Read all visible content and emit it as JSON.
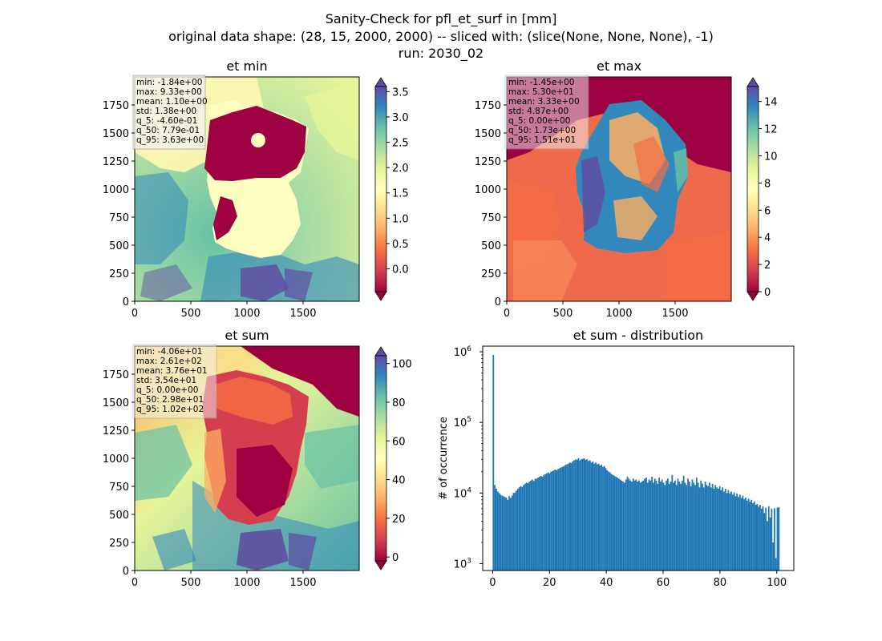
{
  "figure": {
    "title_lines": [
      "Sanity-Check for pfl_et_surf in [mm]",
      "original data shape: (28, 15, 2000, 2000) -- sliced with: (slice(None, None, None), -1)",
      "run: 2030_02"
    ]
  },
  "chart_data": [
    {
      "type": "heatmap",
      "title": "et min",
      "xlim": [
        0,
        2000
      ],
      "ylim": [
        0,
        2000
      ],
      "x_ticks": [
        "0",
        "500",
        "1000",
        "1500"
      ],
      "y_ticks": [
        "0",
        "250",
        "500",
        "750",
        "1000",
        "1250",
        "1500",
        "1750"
      ],
      "colormap": "Spectral",
      "colorbar": {
        "range": [
          -0.45,
          3.6
        ],
        "extend": "both",
        "ticks": [
          "0.0",
          "0.5",
          "1.0",
          "1.5",
          "2.0",
          "2.5",
          "3.0",
          "3.5"
        ],
        "tick_values": [
          0,
          0.5,
          1,
          1.5,
          2,
          2.5,
          3,
          3.5
        ]
      },
      "stats": [
        "min: -1.84e+00",
        "max: 9.33e+00",
        "mean: 1.10e+00",
        "std: 1.38e+00",
        "q_5: -4.60e-01",
        "q_50: 7.79e-01",
        "q_95: 3.63e+00"
      ]
    },
    {
      "type": "heatmap",
      "title": "et max",
      "xlim": [
        0,
        2000
      ],
      "ylim": [
        0,
        2000
      ],
      "x_ticks": [
        "0",
        "500",
        "1000",
        "1500"
      ],
      "y_ticks": [
        "0",
        "250",
        "500",
        "750",
        "1000",
        "1250",
        "1500",
        "1750"
      ],
      "colormap": "Spectral",
      "colorbar": {
        "range": [
          0,
          15.1
        ],
        "extend": "both",
        "ticks": [
          "0",
          "2",
          "4",
          "6",
          "8",
          "10",
          "12",
          "14"
        ],
        "tick_values": [
          0,
          2,
          4,
          6,
          8,
          10,
          12,
          14
        ]
      },
      "stats": [
        "min: -1.45e+00",
        "max: 5.30e+01",
        "mean: 3.33e+00",
        "std: 4.87e+00",
        "q_5: 0.00e+00",
        "q_50: 1.73e+00",
        "q_95: 1.51e+01"
      ]
    },
    {
      "type": "heatmap",
      "title": "et sum",
      "xlim": [
        0,
        2000
      ],
      "ylim": [
        0,
        2000
      ],
      "x_ticks": [
        "0",
        "500",
        "1000",
        "1500"
      ],
      "y_ticks": [
        "0",
        "250",
        "500",
        "750",
        "1000",
        "1250",
        "1500",
        "1750"
      ],
      "colormap": "Spectral",
      "colorbar": {
        "range": [
          -2,
          104
        ],
        "extend": "both",
        "ticks": [
          "0",
          "20",
          "40",
          "60",
          "80",
          "100"
        ],
        "tick_values": [
          0,
          20,
          40,
          60,
          80,
          100
        ]
      },
      "stats": [
        "min: -4.06e+01",
        "max: 2.61e+02",
        "mean: 3.76e+01",
        "std: 3.54e+01",
        "q_5: 0.00e+00",
        "q_50: 2.98e+01",
        "q_95: 1.02e+02"
      ]
    },
    {
      "type": "bar",
      "title": "et sum - distribution",
      "ylabel": "# of occurrence",
      "yscale": "log",
      "xlim": [
        -3.5,
        106
      ],
      "ylim": [
        800,
        1200000
      ],
      "x_ticks": [
        "0",
        "20",
        "40",
        "60",
        "80",
        "100"
      ],
      "x_tick_values": [
        0,
        20,
        40,
        60,
        80,
        100
      ],
      "y_ticks": [
        {
          "base": "10",
          "exp": "3",
          "value": 1000
        },
        {
          "base": "10",
          "exp": "4",
          "value": 10000
        },
        {
          "base": "10",
          "exp": "5",
          "value": 100000
        },
        {
          "base": "10",
          "exp": "6",
          "value": 1000000
        }
      ],
      "bar_color": "#1f77b4",
      "bin_range": [
        0,
        101.5
      ],
      "bin_count": 200,
      "values": [
        900000,
        13000,
        11500,
        10500,
        10000,
        9500,
        9200,
        9000,
        8800,
        8600,
        8000,
        9000,
        8500,
        9200,
        10000,
        10200,
        10800,
        11500,
        12000,
        12500,
        12200,
        13000,
        13500,
        14000,
        13800,
        14500,
        15000,
        15500,
        14800,
        15800,
        16000,
        16500,
        17000,
        17500,
        17000,
        18000,
        18500,
        19000,
        19500,
        19000,
        20000,
        20500,
        21000,
        21500,
        21000,
        22000,
        22500,
        23000,
        23500,
        24000,
        25000,
        25500,
        26000,
        27000,
        26500,
        28000,
        29000,
        30000,
        29500,
        31000,
        29000,
        30000,
        30500,
        31000,
        29500,
        30000,
        28500,
        29000,
        27000,
        28000,
        26000,
        27000,
        25500,
        26000,
        24500,
        25000,
        23500,
        24000,
        22500,
        21000,
        20000,
        19500,
        18500,
        18000,
        17500,
        17000,
        16500,
        16000,
        15500,
        15000,
        14500,
        14000,
        15500,
        17000,
        16000,
        15000,
        14500,
        16000,
        15000,
        15500,
        14500,
        15000,
        14000,
        14500,
        15000,
        16000,
        16500,
        14000,
        15500,
        15000,
        17000,
        14000,
        16000,
        15000,
        13500,
        16500,
        14500,
        15500,
        14000,
        13000,
        15000,
        16000,
        13500,
        14500,
        18000,
        14000,
        15000,
        13000,
        16000,
        14500,
        13500,
        15000,
        17500,
        14000,
        13000,
        16000,
        14500,
        12500,
        15500,
        14000,
        13000,
        16500,
        14000,
        12000,
        15000,
        13500,
        12000,
        14500,
        13000,
        12500,
        14000,
        12000,
        13500,
        11500,
        13000,
        12000,
        11500,
        12500,
        11000,
        12000,
        10500,
        11500,
        10000,
        11000,
        9800,
        10500,
        9500,
        10200,
        9000,
        9800,
        8800,
        9500,
        8500,
        9200,
        8200,
        8600,
        7800,
        8300,
        7500,
        8000,
        7200,
        7600,
        6800,
        7000,
        6400,
        6800,
        6000,
        6500,
        5200,
        6200,
        4000,
        6500,
        4500,
        6000,
        2000,
        6100,
        1200,
        6200,
        6300,
        0
      ]
    }
  ]
}
